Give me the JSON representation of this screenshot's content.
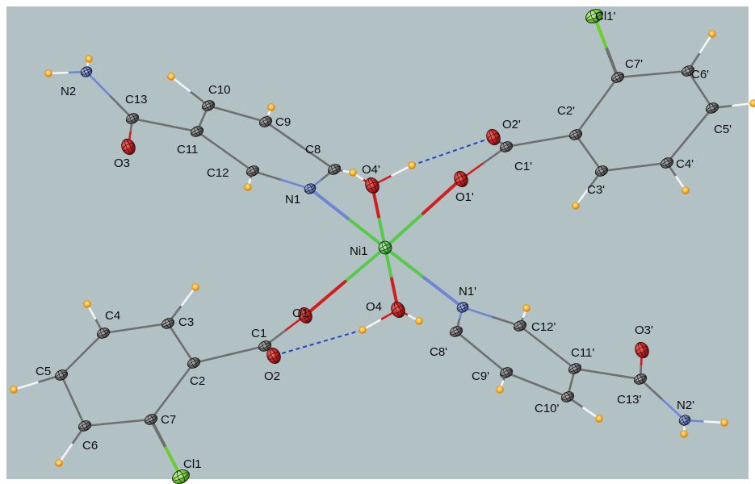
{
  "colors": {
    "background": "#b2c1c3",
    "carbon": "#6f6f6f",
    "hydrogen": "#f6a81e",
    "oxygen": "#d21e1e",
    "nitrogen": "#6f86d6",
    "nickel": "#58c94a",
    "chlorine": "#6bcf2b",
    "hbond": "#1d46c8"
  },
  "atoms": {
    "ni1": {
      "label": "Ni1",
      "element": "Ni"
    },
    "o1": {
      "label": "O1",
      "element": "O"
    },
    "o2": {
      "label": "O2",
      "element": "O"
    },
    "o3": {
      "label": "O3",
      "element": "O"
    },
    "o4": {
      "label": "O4",
      "element": "O"
    },
    "n1": {
      "label": "N1",
      "element": "N"
    },
    "n2": {
      "label": "N2",
      "element": "N"
    },
    "c1": {
      "label": "C1",
      "element": "C"
    },
    "c2": {
      "label": "C2",
      "element": "C"
    },
    "c3": {
      "label": "C3",
      "element": "C"
    },
    "c4": {
      "label": "C4",
      "element": "C"
    },
    "c5": {
      "label": "C5",
      "element": "C"
    },
    "c6": {
      "label": "C6",
      "element": "C"
    },
    "c7": {
      "label": "C7",
      "element": "C"
    },
    "c8": {
      "label": "C8",
      "element": "C"
    },
    "c9": {
      "label": "C9",
      "element": "C"
    },
    "c10": {
      "label": "C10",
      "element": "C"
    },
    "c11": {
      "label": "C11",
      "element": "C"
    },
    "c12": {
      "label": "C12",
      "element": "C"
    },
    "c13": {
      "label": "C13",
      "element": "C"
    },
    "cl1": {
      "label": "Cl1",
      "element": "Cl"
    },
    "o1p": {
      "label": "O1'",
      "element": "O"
    },
    "o2p": {
      "label": "O2'",
      "element": "O"
    },
    "o3p": {
      "label": "O3'",
      "element": "O"
    },
    "o4p": {
      "label": "O4'",
      "element": "O"
    },
    "n1p": {
      "label": "N1'",
      "element": "N"
    },
    "n2p": {
      "label": "N2'",
      "element": "N"
    },
    "c1p": {
      "label": "C1'",
      "element": "C"
    },
    "c2p": {
      "label": "C2'",
      "element": "C"
    },
    "c3p": {
      "label": "C3'",
      "element": "C"
    },
    "c4p": {
      "label": "C4'",
      "element": "C"
    },
    "c5p": {
      "label": "C5'",
      "element": "C"
    },
    "c6p": {
      "label": "C6'",
      "element": "C"
    },
    "c7p": {
      "label": "C7'",
      "element": "C"
    },
    "c8p": {
      "label": "C8'",
      "element": "C"
    },
    "c9p": {
      "label": "C9'",
      "element": "C"
    },
    "c10p": {
      "label": "C10'",
      "element": "C"
    },
    "c11p": {
      "label": "C11'",
      "element": "C"
    },
    "c12p": {
      "label": "C12'",
      "element": "C"
    },
    "c13p": {
      "label": "C13'",
      "element": "C"
    },
    "cl1p": {
      "label": "Cl1'",
      "element": "Cl"
    }
  }
}
